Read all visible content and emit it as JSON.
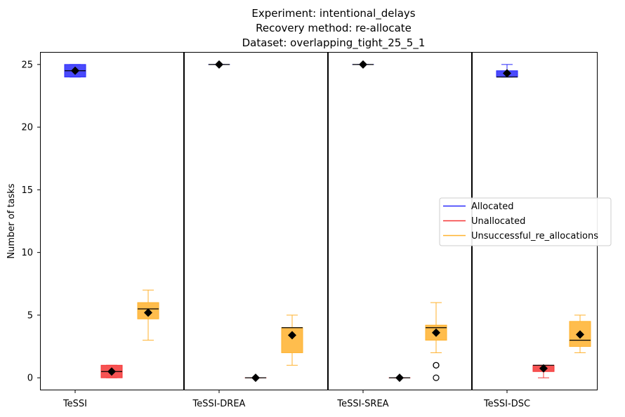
{
  "chart_data": {
    "type": "box",
    "title_lines": [
      "Experiment: intentional_delays",
      "Recovery method: re-allocate",
      "Dataset: overlapping_tight_25_5_1"
    ],
    "ylabel": "Number of tasks",
    "xlabel": "",
    "ylim": [
      -1,
      26
    ],
    "yticks": [
      0,
      5,
      10,
      15,
      20,
      25
    ],
    "ytick_labels": [
      "0",
      "5",
      "10",
      "15",
      "20",
      "25"
    ],
    "grid": false,
    "legend_position": "center-right",
    "series": [
      {
        "name": "Allocated",
        "color": "#2a2afc"
      },
      {
        "name": "Unallocated",
        "color": "#f53535"
      },
      {
        "name": "Unsuccessful_re_allocations",
        "color": "#ffb22e"
      }
    ],
    "groups": [
      {
        "label": "TeSSI",
        "boxes": [
          {
            "series": "Allocated",
            "whisker_low": 24,
            "q1": 24,
            "median": 24.5,
            "q3": 25,
            "whisker_high": 25,
            "mean": 24.5,
            "outliers": []
          },
          {
            "series": "Unallocated",
            "whisker_low": 0,
            "q1": 0,
            "median": 0.5,
            "q3": 1,
            "whisker_high": 1,
            "mean": 0.5,
            "outliers": []
          },
          {
            "series": "Unsuccessful_re_allocations",
            "whisker_low": 3,
            "q1": 4.7,
            "median": 5.5,
            "q3": 6,
            "whisker_high": 7,
            "mean": 5.2,
            "outliers": []
          }
        ]
      },
      {
        "label": "TeSSI-DREA",
        "boxes": [
          {
            "series": "Allocated",
            "whisker_low": 25,
            "q1": 25,
            "median": 25,
            "q3": 25,
            "whisker_high": 25,
            "mean": 25,
            "outliers": []
          },
          {
            "series": "Unallocated",
            "whisker_low": 0,
            "q1": 0,
            "median": 0,
            "q3": 0,
            "whisker_high": 0,
            "mean": 0,
            "outliers": []
          },
          {
            "series": "Unsuccessful_re_allocations",
            "whisker_low": 1,
            "q1": 2,
            "median": 4,
            "q3": 4,
            "whisker_high": 5,
            "mean": 3.4,
            "outliers": []
          }
        ]
      },
      {
        "label": "TeSSI-SREA",
        "boxes": [
          {
            "series": "Allocated",
            "whisker_low": 25,
            "q1": 25,
            "median": 25,
            "q3": 25,
            "whisker_high": 25,
            "mean": 25,
            "outliers": []
          },
          {
            "series": "Unallocated",
            "whisker_low": 0,
            "q1": 0,
            "median": 0,
            "q3": 0,
            "whisker_high": 0,
            "mean": 0,
            "outliers": []
          },
          {
            "series": "Unsuccessful_re_allocations",
            "whisker_low": 2,
            "q1": 3,
            "median": 4,
            "q3": 4.2,
            "whisker_high": 6,
            "mean": 3.6,
            "outliers": [
              1,
              1,
              0
            ]
          }
        ]
      },
      {
        "label": "TeSSI-DSC",
        "boxes": [
          {
            "series": "Allocated",
            "whisker_low": 24,
            "q1": 24,
            "median": 24,
            "q3": 24.5,
            "whisker_high": 25,
            "mean": 24.3,
            "outliers": []
          },
          {
            "series": "Unallocated",
            "whisker_low": 0,
            "q1": 0.5,
            "median": 1,
            "q3": 1,
            "whisker_high": 1,
            "mean": 0.75,
            "outliers": []
          },
          {
            "series": "Unsuccessful_re_allocations",
            "whisker_low": 2,
            "q1": 2.5,
            "median": 3,
            "q3": 4.5,
            "whisker_high": 5,
            "mean": 3.45,
            "outliers": []
          }
        ]
      }
    ]
  }
}
